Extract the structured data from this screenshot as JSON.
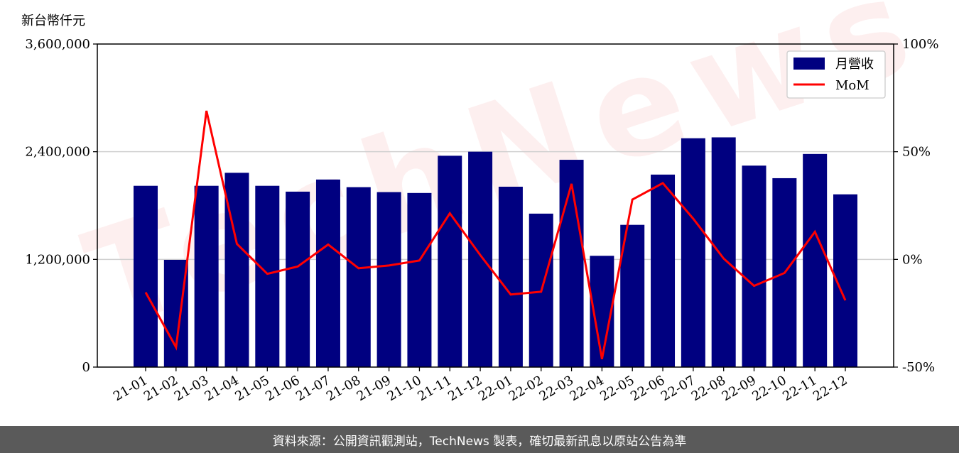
{
  "watermark": "TechNews",
  "footer": {
    "text": "資料來源：公開資訊觀測站，TechNews 製表，確切最新訊息以原站公告為準"
  },
  "chart_data": {
    "type": "bar",
    "unit_label": "新台幣仟元",
    "categories": [
      "21-01",
      "21-02",
      "21-03",
      "21-04",
      "21-05",
      "21-06",
      "21-07",
      "21-08",
      "21-09",
      "21-10",
      "21-11",
      "21-12",
      "22-01",
      "22-02",
      "22-03",
      "22-04",
      "22-05",
      "22-06",
      "22-07",
      "22-08",
      "22-09",
      "22-10",
      "22-11",
      "22-12"
    ],
    "series": [
      {
        "name": "月營收",
        "type": "bar",
        "axis": "left",
        "color": "#000080",
        "values": [
          2020000,
          1195000,
          2020000,
          2165000,
          2020000,
          1955000,
          2090000,
          2005000,
          1950000,
          1940000,
          2355000,
          2400000,
          2010000,
          1710000,
          2310000,
          1240000,
          1585000,
          2145000,
          2550000,
          2560000,
          2245000,
          2105000,
          2375000,
          1925000
        ]
      },
      {
        "name": "MoM",
        "type": "line",
        "axis": "right",
        "color": "#ff0000",
        "values": [
          -15.3,
          -40.8,
          69.0,
          7.2,
          -6.7,
          -3.3,
          6.9,
          -4.1,
          -2.8,
          -0.5,
          21.4,
          2.0,
          -16.3,
          -15.0,
          35.1,
          -46.3,
          27.8,
          35.4,
          18.9,
          0.4,
          -12.3,
          -6.3,
          12.8,
          -19.0
        ]
      }
    ],
    "y_left": {
      "lim": [
        0,
        3600000
      ],
      "ticks": [
        0,
        1200000,
        2400000,
        3600000
      ],
      "tick_labels": [
        "0",
        "1,200,000",
        "2,400,000",
        "3,600,000"
      ]
    },
    "y_right": {
      "lim": [
        -50,
        100
      ],
      "ticks": [
        -50,
        0,
        50,
        100
      ],
      "tick_labels": [
        "-50%",
        "0%",
        "50%",
        "100%"
      ]
    },
    "grid": "horizontal",
    "legend": "top-right"
  }
}
